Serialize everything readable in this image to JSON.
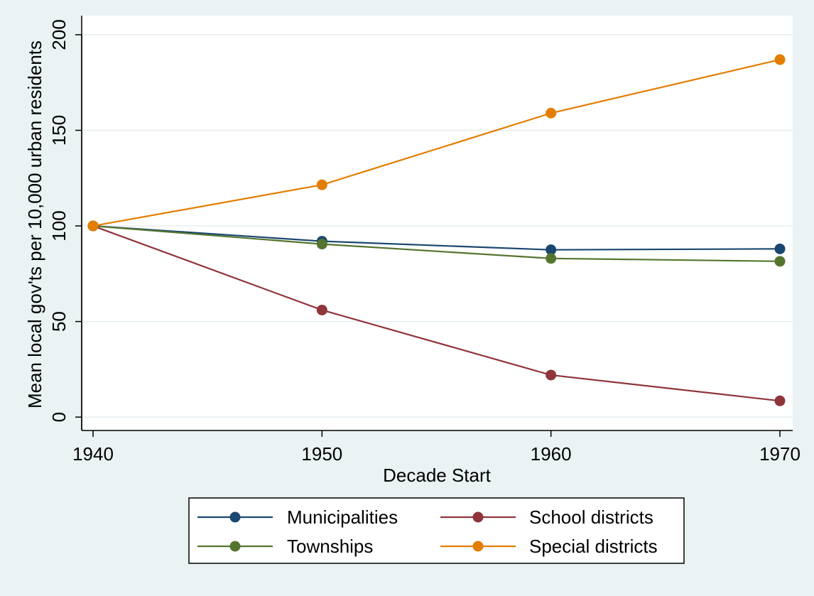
{
  "chart_data": {
    "type": "line",
    "title": "",
    "xlabel": "Decade Start",
    "ylabel": "Mean local gov'ts per 10,000 urban residents",
    "x": [
      1940,
      1950,
      1960,
      1970
    ],
    "xlim": [
      1940,
      1970
    ],
    "ylim": [
      -7,
      210
    ],
    "yticks": [
      0,
      50,
      100,
      150,
      200
    ],
    "xticks": [
      1940,
      1950,
      1960,
      1970
    ],
    "grid": "horizontal",
    "legend_position": "bottom",
    "series": [
      {
        "name": "Municipalities",
        "color": "#1a476f",
        "values": [
          100,
          92,
          87.5,
          88
        ]
      },
      {
        "name": "School districts",
        "color": "#90353b",
        "values": [
          100,
          56,
          22,
          8.5
        ]
      },
      {
        "name": "Townships",
        "color": "#55752f",
        "values": [
          100,
          90.5,
          83,
          81.5
        ]
      },
      {
        "name": "Special districts",
        "color": "#e37e00",
        "values": [
          100,
          121.5,
          159,
          187
        ]
      }
    ]
  }
}
